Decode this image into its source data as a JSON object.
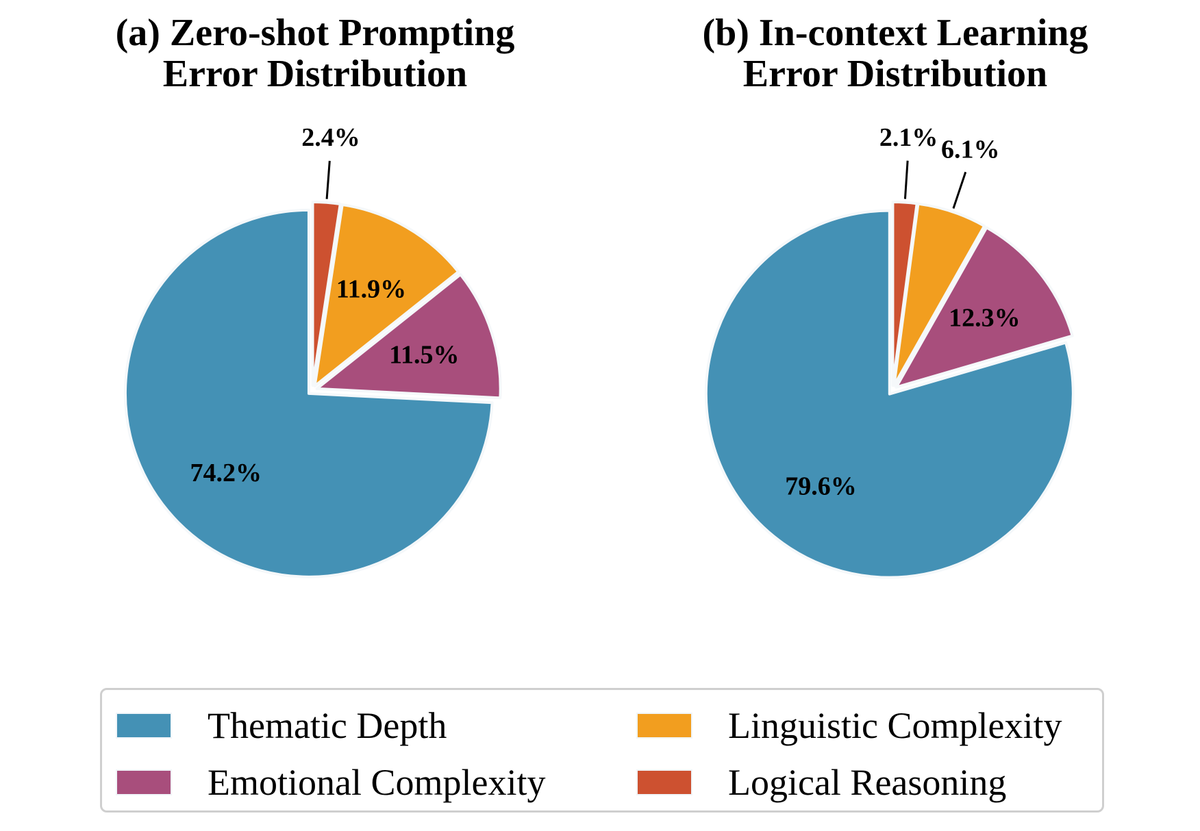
{
  "chart_data": [
    {
      "type": "pie",
      "title_line1": "(a) Zero-shot Prompting",
      "title_line2": "Error Distribution",
      "slices": [
        {
          "name": "Logical Reasoning",
          "value": 2.4,
          "label": "2.4%"
        },
        {
          "name": "Linguistic Complexity",
          "value": 11.9,
          "label": "11.9%"
        },
        {
          "name": "Emotional Complexity",
          "value": 11.5,
          "label": "11.5%"
        },
        {
          "name": "Thematic Depth",
          "value": 74.2,
          "label": "74.2%"
        }
      ]
    },
    {
      "type": "pie",
      "title_line1": "(b) In-context Learning",
      "title_line2": "Error Distribution",
      "slices": [
        {
          "name": "Logical Reasoning",
          "value": 2.1,
          "label": "2.1%"
        },
        {
          "name": "Linguistic Complexity",
          "value": 6.1,
          "label": "6.1%"
        },
        {
          "name": "Emotional Complexity",
          "value": 12.3,
          "label": "12.3%"
        },
        {
          "name": "Thematic Depth",
          "value": 79.6,
          "label": "79.6%"
        }
      ]
    }
  ],
  "legend": {
    "items": [
      {
        "name": "Thematic Depth",
        "color": "#4491b5"
      },
      {
        "name": "Linguistic Complexity",
        "color": "#f29e1f"
      },
      {
        "name": "Emotional Complexity",
        "color": "#a84e7c"
      },
      {
        "name": "Logical Reasoning",
        "color": "#cd5130"
      }
    ]
  },
  "colors": {
    "Thematic Depth": "#4491b5",
    "Linguistic Complexity": "#f29e1f",
    "Emotional Complexity": "#a84e7c",
    "Logical Reasoning": "#cd5130"
  }
}
